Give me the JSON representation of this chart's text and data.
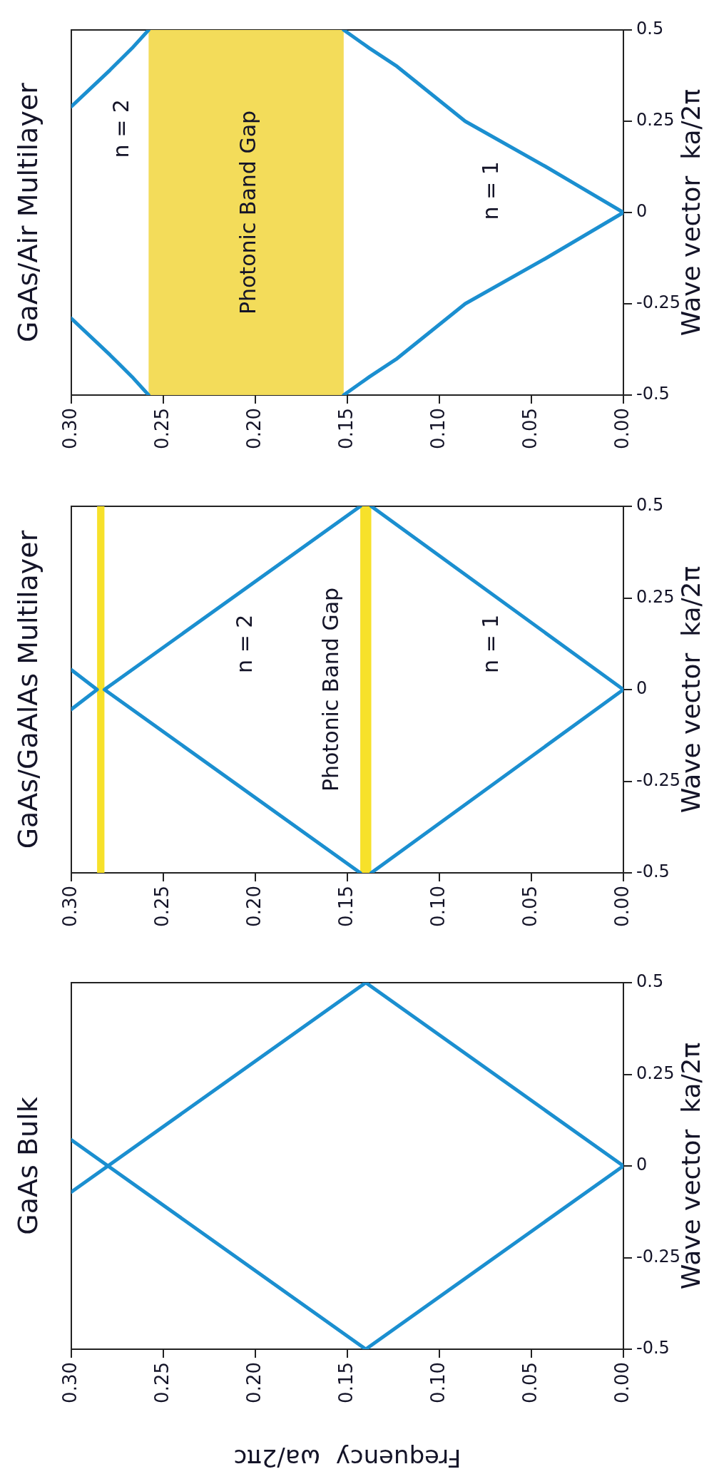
{
  "chart_data": [
    {
      "type": "line",
      "title": "GaAs/Air Multilayer",
      "ylabel": "Wave vector  ka/2π",
      "xlim": [
        0.3,
        0
      ],
      "xticks": [
        {
          "value": 0.3,
          "label": "0.30"
        },
        {
          "value": 0.25,
          "label": "0.25"
        },
        {
          "value": 0.2,
          "label": "0.20"
        },
        {
          "value": 0.15,
          "label": "0.15"
        },
        {
          "value": 0.1,
          "label": "0.10"
        },
        {
          "value": 0.05,
          "label": "0.05"
        },
        {
          "value": 0,
          "label": "0.00"
        }
      ],
      "ylim": [
        -0.5,
        0.5
      ],
      "yticks": [
        -0.5,
        -0.25,
        0,
        0.25,
        0.5
      ],
      "grid": false,
      "legend": false,
      "marker": "none",
      "bands": [
        {
          "axis": "x",
          "from": 0.152,
          "to": 0.258,
          "color": "#f3dc5a"
        }
      ],
      "annotations": [
        "n = 2",
        "n = 1",
        "Photonic Band Gap"
      ],
      "series": [
        {
          "color": "#1b8fd0",
          "x": [
            0.152,
            0.138,
            0.123,
            0.086,
            0.042,
            0,
            0.042,
            0.086,
            0.123,
            0.138,
            0.152
          ],
          "values": [
            -0.5,
            -0.45,
            -0.4,
            -0.25,
            -0.125,
            0,
            0.125,
            0.25,
            0.4,
            0.45,
            0.5
          ]
        },
        {
          "color": "#1b8fd0",
          "x": [
            0.3,
            0.279,
            0.267,
            0.258
          ],
          "values": [
            0.29,
            0.39,
            0.45,
            0.5
          ]
        },
        {
          "color": "#1b8fd0",
          "x": [
            0.3,
            0.279,
            0.267,
            0.258
          ],
          "values": [
            -0.29,
            -0.39,
            -0.45,
            -0.5
          ]
        }
      ]
    },
    {
      "type": "line",
      "title": "GaAs/GaAlAs Multilayer",
      "ylabel": "Wave vector  ka/2π",
      "xlim": [
        0.3,
        0
      ],
      "xticks": [
        {
          "value": 0.3,
          "label": "0.30"
        },
        {
          "value": 0.25,
          "label": "0.25"
        },
        {
          "value": 0.2,
          "label": "0.20"
        },
        {
          "value": 0.15,
          "label": "0.15"
        },
        {
          "value": 0.1,
          "label": "0.10"
        },
        {
          "value": 0.05,
          "label": "0.05"
        },
        {
          "value": 0,
          "label": "0.00"
        }
      ],
      "ylim": [
        -0.5,
        0.5
      ],
      "yticks": [
        -0.5,
        -0.25,
        0,
        0.25,
        0.5
      ],
      "grid": false,
      "legend": false,
      "marker": "none",
      "bands": [
        {
          "axis": "x",
          "from": 0.137,
          "to": 0.143,
          "color": "#f7e12a"
        },
        {
          "axis": "x",
          "from": 0.282,
          "to": 0.286,
          "color": "#f7e12a"
        }
      ],
      "annotations": [
        "n = 2",
        "n = 1",
        "Photonic Band Gap"
      ],
      "series": [
        {
          "color": "#1b8fd0",
          "x": [
            0.137,
            0,
            0.137
          ],
          "values": [
            -0.5,
            0,
            0.5
          ]
        },
        {
          "color": "#1b8fd0",
          "x": [
            0.143,
            0.282,
            0.143
          ],
          "values": [
            -0.5,
            0,
            0.5
          ]
        },
        {
          "color": "#1b8fd0",
          "x": [
            0.3,
            0.286,
            0.3
          ],
          "values": [
            -0.054,
            0,
            0.054
          ]
        }
      ]
    },
    {
      "type": "line",
      "title": "GaAs Bulk",
      "xlabel": "Frequency  ωa/2πc",
      "ylabel": "Wave vector  ka/2π",
      "xlim": [
        0.3,
        0
      ],
      "xticks": [
        {
          "value": 0.3,
          "label": "0.30"
        },
        {
          "value": 0.25,
          "label": "0.25"
        },
        {
          "value": 0.2,
          "label": "0.20"
        },
        {
          "value": 0.15,
          "label": "0.15"
        },
        {
          "value": 0.1,
          "label": "0.10"
        },
        {
          "value": 0.05,
          "label": "0.05"
        },
        {
          "value": 0,
          "label": "0.00"
        }
      ],
      "ylim": [
        -0.5,
        0.5
      ],
      "yticks": [
        -0.5,
        -0.25,
        0,
        0.25,
        0.5
      ],
      "grid": false,
      "legend": false,
      "marker": "none",
      "series": [
        {
          "color": "#1b8fd0",
          "x": [
            0.14,
            0,
            0.14
          ],
          "values": [
            -0.5,
            0,
            0.5
          ]
        },
        {
          "color": "#1b8fd0",
          "x": [
            0.14,
            0.3
          ],
          "values": [
            -0.5,
            0.071
          ]
        },
        {
          "color": "#1b8fd0",
          "x": [
            0.14,
            0.3
          ],
          "values": [
            0.5,
            -0.071
          ]
        }
      ]
    }
  ]
}
